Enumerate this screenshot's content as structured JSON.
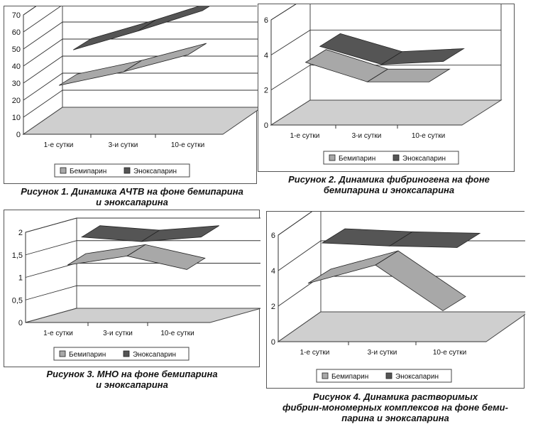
{
  "chart_data": [
    {
      "type": "line",
      "categories": [
        "1-е сутки",
        "3-и сутки",
        "10-е сутки"
      ],
      "series": [
        {
          "name": "Бемипарин",
          "values": [
            32,
            40,
            50
          ],
          "color": "#a8a8a8"
        },
        {
          "name": "Эноксапарин",
          "values": [
            47,
            58,
            70
          ],
          "color": "#555555"
        }
      ],
      "yticks": [
        "0",
        "10",
        "20",
        "30",
        "40",
        "50",
        "60",
        "70"
      ],
      "ylim": [
        0,
        70
      ],
      "grid": true,
      "legend": "bottom",
      "caption": [
        "Рисунок 1. Динамика АЧТВ на фоне бемипарина",
        "и эноксапарина"
      ]
    },
    {
      "type": "line",
      "categories": [
        "1-е сутки",
        "3-и сутки",
        "10-е сутки"
      ],
      "series": [
        {
          "name": "Бемипарин",
          "values": [
            4.6,
            3.3,
            3.3
          ],
          "color": "#a8a8a8"
        },
        {
          "name": "Эноксапарин",
          "values": [
            5.0,
            3.8,
            4.0
          ],
          "color": "#555555"
        }
      ],
      "yticks": [
        "0",
        "2",
        "4",
        "6"
      ],
      "ylim": [
        0,
        7
      ],
      "grid": true,
      "legend": "bottom",
      "caption": [
        "Рисунок 2. Динамика фибриногена на фоне",
        "бемипарина и эноксапарина"
      ]
    },
    {
      "type": "line",
      "categories": [
        "1-е сутки",
        "3-и сутки",
        "10-е сутки"
      ],
      "series": [
        {
          "name": "Бемипарин",
          "values": [
            1.4,
            1.6,
            1.3
          ],
          "color": "#a8a8a8"
        },
        {
          "name": "Эноксапарин",
          "values": [
            1.8,
            1.7,
            1.8
          ],
          "color": "#555555"
        }
      ],
      "yticks": [
        "0",
        "0,5",
        "1",
        "1,5",
        "2"
      ],
      "ylim": [
        0,
        2
      ],
      "grid": true,
      "legend": "bottom",
      "caption": [
        "Рисунок 3. МНО на фоне бемипарина",
        "и эноксапарина"
      ]
    },
    {
      "type": "line",
      "categories": [
        "1-е сутки",
        "3-и сутки",
        "10-е сутки"
      ],
      "series": [
        {
          "name": "Бемипарин",
          "values": [
            4.3,
            5.5,
            2.5
          ],
          "color": "#a8a8a8"
        },
        {
          "name": "Эноксапарин",
          "values": [
            6.3,
            6.1,
            6.0
          ],
          "color": "#555555"
        }
      ],
      "yticks": [
        "0",
        "2",
        "4",
        "6"
      ],
      "ylim": [
        0,
        7
      ],
      "grid": true,
      "legend": "bottom",
      "caption": [
        "Рисунок 4. Динамика растворимых",
        "фибрин-мономерных комплексов на фоне бeми-",
        "парина и эноксапарина"
      ]
    }
  ]
}
